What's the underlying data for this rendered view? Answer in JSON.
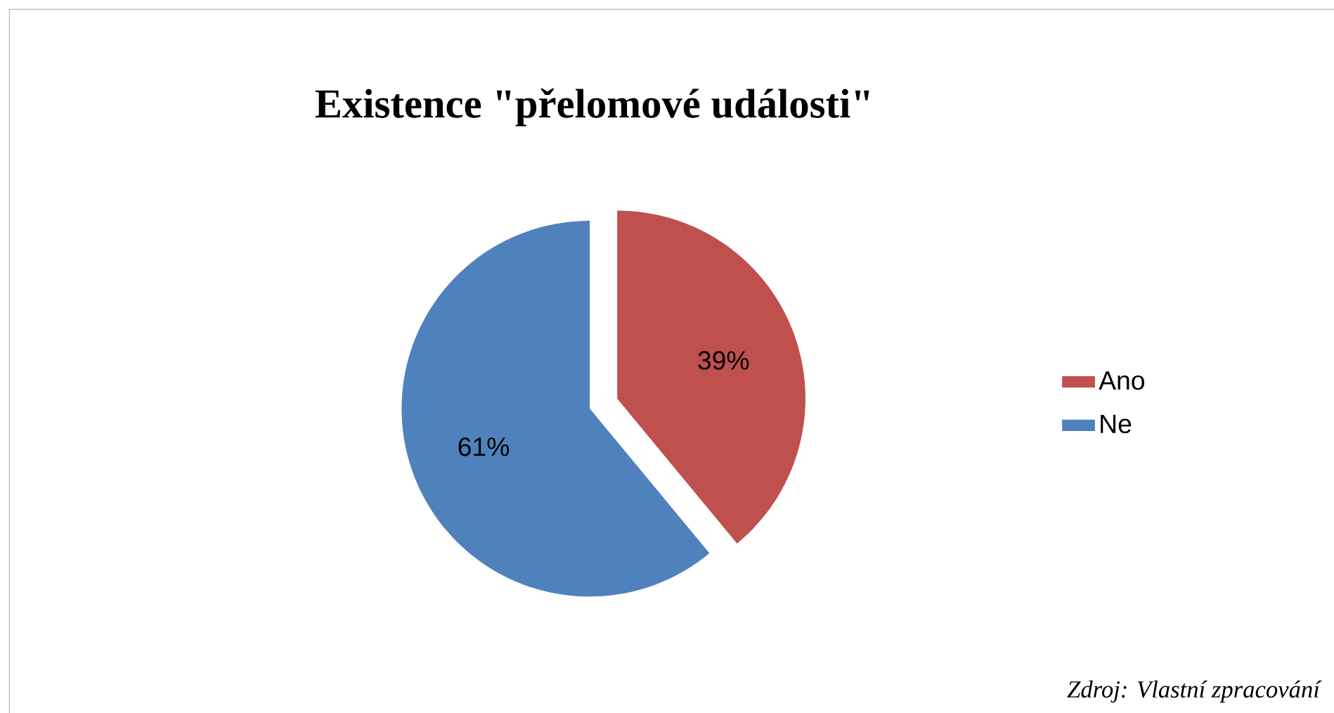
{
  "chart_data": {
    "type": "pie",
    "title": "Existence \"přelomové události\"",
    "categories": [
      "Ano",
      "Ne"
    ],
    "values": [
      39,
      61
    ],
    "colors": [
      "#c0504d",
      "#4f81bd"
    ],
    "value_labels": [
      "39%",
      "61%"
    ],
    "legend": "right",
    "annotations": [
      "Zdroj: Vlastní zpracování"
    ]
  }
}
